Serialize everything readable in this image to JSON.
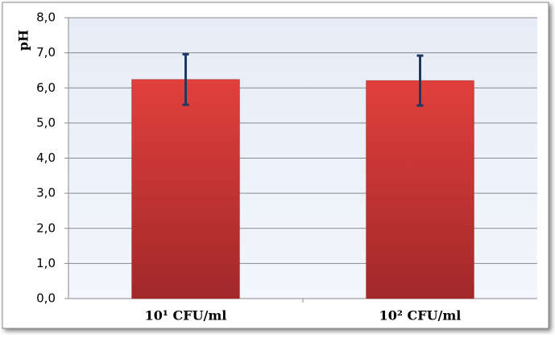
{
  "chart_data": {
    "type": "bar",
    "y_label": "pH",
    "categories": [
      "10¹ CFU/ml",
      "10² CFU/ml"
    ],
    "values": [
      6.24,
      6.21
    ],
    "errors": [
      0.72,
      0.71
    ],
    "color": "#c0302c",
    "error_color": "#1f3864",
    "ylim": [
      0,
      8
    ],
    "yticks": [
      {
        "value": 0,
        "label": "0,0"
      },
      {
        "value": 1,
        "label": "1,0"
      },
      {
        "value": 2,
        "label": "2,0"
      },
      {
        "value": 3,
        "label": "3,0"
      },
      {
        "value": 4,
        "label": "4,0"
      },
      {
        "value": 5,
        "label": "5,0"
      },
      {
        "value": 6,
        "label": "6,0"
      },
      {
        "value": 7,
        "label": "7,0"
      },
      {
        "value": 8,
        "label": "8,0"
      }
    ],
    "grid": true
  }
}
